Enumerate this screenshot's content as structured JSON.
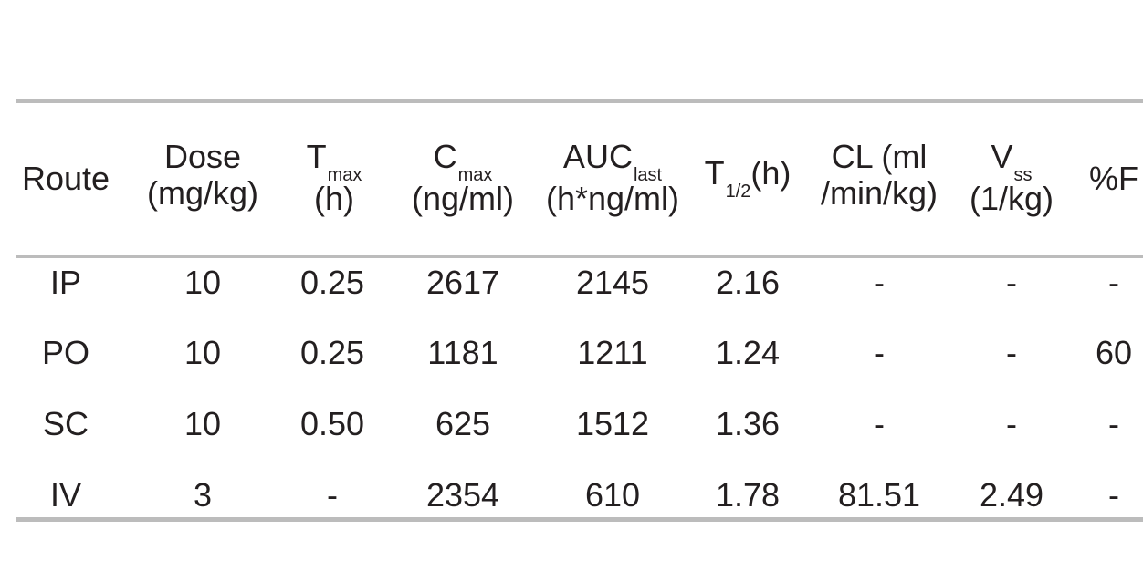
{
  "table": {
    "headers": {
      "route": "Route",
      "dose": {
        "line1": "Dose",
        "line2": "(mg/kg)"
      },
      "tmax": {
        "symbol": "T",
        "sub": "max",
        "line2": "(h)"
      },
      "cmax": {
        "symbol": "C",
        "sub": "max",
        "line2": "(ng/ml)"
      },
      "auc": {
        "symbol": "AUC",
        "sub": "last",
        "line2": "(h*ng/ml)"
      },
      "thalf": {
        "symbol": "T",
        "sub": "1/2",
        "unit": "(h)"
      },
      "cl": {
        "line1": "CL (ml",
        "line2": "/min/kg)"
      },
      "vss": {
        "symbol": "V",
        "sub": "ss",
        "line2": "(1/kg)"
      },
      "f": "%F"
    },
    "rows": [
      {
        "route": "IP",
        "dose": "10",
        "tmax": "0.25",
        "cmax": "2617",
        "auc": "2145",
        "thalf": "2.16",
        "cl": "-",
        "vss": "-",
        "f": "-"
      },
      {
        "route": "PO",
        "dose": "10",
        "tmax": "0.25",
        "cmax": "1181",
        "auc": "1211",
        "thalf": "1.24",
        "cl": "-",
        "vss": "-",
        "f": "60"
      },
      {
        "route": "SC",
        "dose": "10",
        "tmax": "0.50",
        "cmax": "625",
        "auc": "1512",
        "thalf": "1.36",
        "cl": "-",
        "vss": "-",
        "f": "-"
      },
      {
        "route": "IV",
        "dose": "3",
        "tmax": "-",
        "cmax": "2354",
        "auc": "610",
        "thalf": "1.78",
        "cl": "81.51",
        "vss": "2.49",
        "f": "-"
      }
    ]
  }
}
